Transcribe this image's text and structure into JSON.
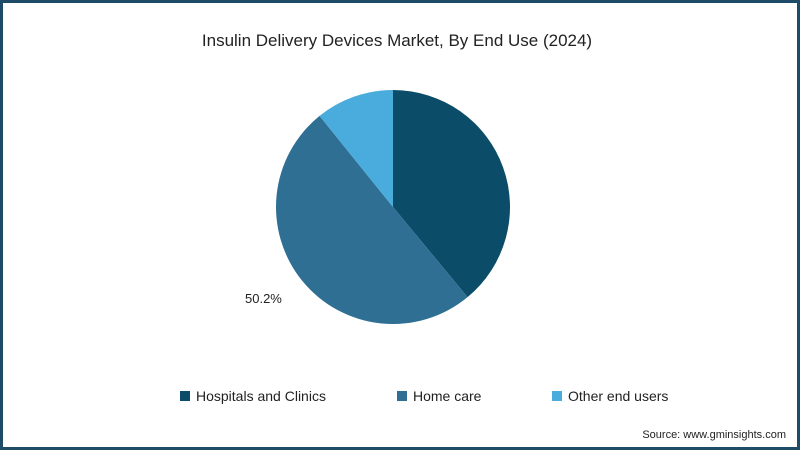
{
  "chart_data": {
    "type": "pie",
    "title": "Insulin Delivery Devices Market, By End Use (2024)",
    "categories": [
      "Hospitals and Clinics",
      "Home care",
      "Other end users"
    ],
    "values": [
      39.0,
      50.2,
      10.8
    ],
    "colors": [
      "#0b4d68",
      "#2f6f93",
      "#4aacdd"
    ],
    "data_labels": [
      {
        "category": "Home care",
        "text": "50.2%"
      }
    ],
    "legend_position": "bottom",
    "start_angle": "12 o'clock, clockwise"
  },
  "title": "Insulin Delivery Devices Market, By End Use (2024)",
  "label_home_care": "50.2%",
  "legend": [
    {
      "label": "Hospitals and Clinics",
      "color": "#0b4d68"
    },
    {
      "label": "Home care",
      "color": "#2f6f93"
    },
    {
      "label": "Other end users",
      "color": "#4aacdd"
    }
  ],
  "source": "Source: www.gminsights.com"
}
